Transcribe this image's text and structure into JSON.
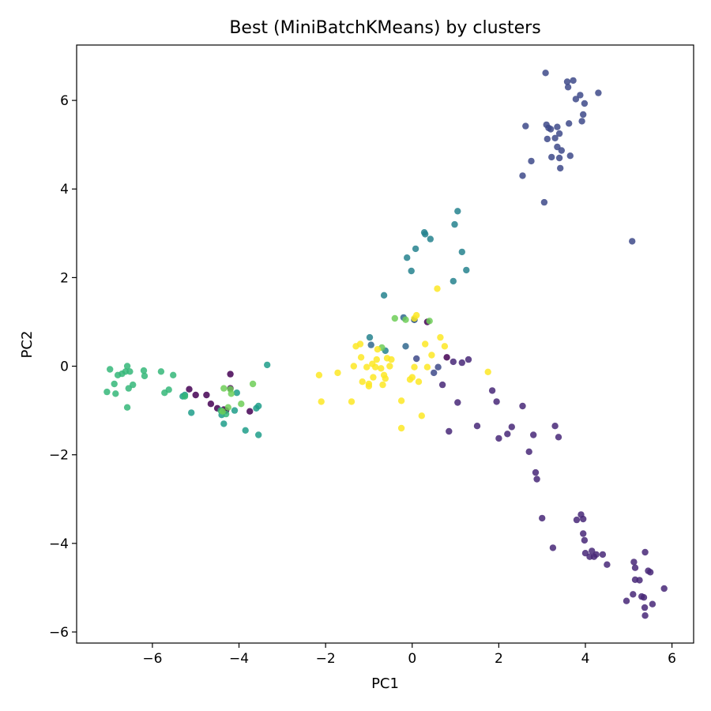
{
  "chart_data": {
    "type": "scatter",
    "title": "Best (MiniBatchKMeans) by clusters",
    "xlabel": "PC1",
    "ylabel": "PC2",
    "xlim": [
      -7.75,
      6.5
    ],
    "ylim": [
      -6.25,
      7.25
    ],
    "xticks": [
      -6,
      -4,
      -2,
      0,
      2,
      4,
      6
    ],
    "yticks": [
      -6,
      -4,
      -2,
      0,
      2,
      4,
      6
    ],
    "xtick_labels": [
      "−6",
      "−4",
      "−2",
      "0",
      "2",
      "4",
      "6"
    ],
    "ytick_labels": [
      "−6",
      "−4",
      "−2",
      "0",
      "2",
      "4",
      "6"
    ],
    "grid": false,
    "legend": "none",
    "marker_alpha": 0.85,
    "series": [
      {
        "color": "#440154",
        "points": [
          [
            -5.15,
            -0.52
          ],
          [
            -5.0,
            -0.65
          ],
          [
            -4.75,
            -0.65
          ],
          [
            -4.65,
            -0.85
          ],
          [
            -4.5,
            -0.95
          ],
          [
            -4.3,
            -1.0
          ],
          [
            -4.2,
            -0.5
          ],
          [
            -4.2,
            -0.18
          ],
          [
            -4.35,
            -0.98
          ],
          [
            -3.75,
            -1.02
          ],
          [
            0.8,
            0.2
          ],
          [
            0.35,
            1.0
          ]
        ]
      },
      {
        "color": "#482878",
        "points": [
          [
            0.05,
            1.05
          ],
          [
            0.7,
            -0.42
          ],
          [
            0.95,
            0.1
          ],
          [
            1.15,
            0.08
          ],
          [
            1.3,
            0.15
          ],
          [
            0.85,
            -1.47
          ],
          [
            1.05,
            -0.82
          ],
          [
            1.5,
            -1.35
          ],
          [
            1.85,
            -0.55
          ],
          [
            1.95,
            -0.8
          ],
          [
            2.0,
            -1.63
          ],
          [
            2.2,
            -1.53
          ],
          [
            2.3,
            -1.37
          ],
          [
            2.55,
            -0.9
          ],
          [
            2.7,
            -1.93
          ],
          [
            2.8,
            -1.55
          ],
          [
            2.85,
            -2.4
          ],
          [
            2.88,
            -2.55
          ],
          [
            3.0,
            -3.43
          ],
          [
            3.25,
            -4.1
          ],
          [
            3.3,
            -1.35
          ],
          [
            3.38,
            -1.6
          ],
          [
            3.8,
            -3.47
          ],
          [
            3.9,
            -3.35
          ],
          [
            3.95,
            -3.45
          ],
          [
            3.95,
            -3.78
          ],
          [
            3.98,
            -3.93
          ],
          [
            4.0,
            -4.22
          ],
          [
            4.1,
            -4.3
          ],
          [
            4.15,
            -4.17
          ],
          [
            4.2,
            -4.3
          ],
          [
            4.25,
            -4.25
          ],
          [
            4.4,
            -4.25
          ],
          [
            4.5,
            -4.48
          ],
          [
            4.95,
            -5.3
          ],
          [
            5.1,
            -5.15
          ],
          [
            5.12,
            -4.42
          ],
          [
            5.15,
            -4.82
          ],
          [
            5.15,
            -4.55
          ],
          [
            5.25,
            -4.83
          ],
          [
            5.3,
            -5.2
          ],
          [
            5.35,
            -5.22
          ],
          [
            5.37,
            -5.45
          ],
          [
            5.38,
            -5.63
          ],
          [
            5.38,
            -4.2
          ],
          [
            5.45,
            -4.62
          ],
          [
            5.5,
            -4.65
          ],
          [
            5.55,
            -5.37
          ],
          [
            5.82,
            -5.02
          ]
        ]
      },
      {
        "color": "#3e4a89",
        "points": [
          [
            0.1,
            0.17
          ],
          [
            0.5,
            -0.15
          ],
          [
            0.6,
            -0.02
          ],
          [
            2.55,
            4.3
          ],
          [
            2.62,
            5.42
          ],
          [
            2.75,
            4.63
          ],
          [
            3.05,
            3.7
          ],
          [
            3.08,
            6.62
          ],
          [
            3.1,
            5.45
          ],
          [
            3.12,
            5.13
          ],
          [
            3.15,
            5.38
          ],
          [
            3.2,
            5.35
          ],
          [
            3.22,
            4.72
          ],
          [
            3.3,
            5.15
          ],
          [
            3.35,
            4.95
          ],
          [
            3.35,
            5.4
          ],
          [
            3.4,
            4.7
          ],
          [
            3.4,
            5.25
          ],
          [
            3.42,
            4.47
          ],
          [
            3.45,
            4.87
          ],
          [
            3.58,
            6.42
          ],
          [
            3.6,
            6.3
          ],
          [
            3.62,
            5.48
          ],
          [
            3.65,
            4.75
          ],
          [
            3.72,
            6.45
          ],
          [
            3.78,
            6.03
          ],
          [
            3.88,
            6.12
          ],
          [
            3.92,
            5.53
          ],
          [
            3.95,
            5.68
          ],
          [
            3.98,
            5.93
          ],
          [
            4.3,
            6.17
          ],
          [
            5.08,
            2.82
          ]
        ]
      },
      {
        "color": "#31688e",
        "points": [
          [
            -0.95,
            0.48
          ],
          [
            -0.2,
            1.1
          ],
          [
            -0.15,
            0.45
          ],
          [
            0.05,
            1.05
          ]
        ]
      },
      {
        "color": "#26828e",
        "points": [
          [
            -0.98,
            0.65
          ],
          [
            -0.65,
            1.6
          ],
          [
            -0.62,
            0.35
          ],
          [
            -0.12,
            2.45
          ],
          [
            -0.02,
            2.15
          ],
          [
            0.08,
            2.65
          ],
          [
            0.28,
            3.02
          ],
          [
            0.3,
            2.98
          ],
          [
            0.42,
            2.87
          ],
          [
            0.95,
            1.92
          ],
          [
            0.98,
            3.2
          ],
          [
            1.05,
            3.5
          ],
          [
            1.15,
            2.58
          ],
          [
            1.25,
            2.17
          ]
        ]
      },
      {
        "color": "#1f9e89",
        "points": [
          [
            -4.4,
            -1.1
          ],
          [
            -4.35,
            -1.3
          ],
          [
            -4.1,
            -1.0
          ],
          [
            -4.05,
            -0.6
          ],
          [
            -3.85,
            -1.45
          ],
          [
            -3.6,
            -0.95
          ],
          [
            -3.55,
            -0.9
          ],
          [
            -3.55,
            -1.55
          ],
          [
            -3.35,
            0.03
          ],
          [
            -5.1,
            -1.05
          ],
          [
            -5.25,
            -0.65
          ],
          [
            -5.3,
            -0.68
          ]
        ]
      },
      {
        "color": "#35b779",
        "points": [
          [
            -7.05,
            -0.58
          ],
          [
            -6.98,
            -0.07
          ],
          [
            -6.88,
            -0.4
          ],
          [
            -6.85,
            -0.62
          ],
          [
            -6.8,
            -0.2
          ],
          [
            -6.7,
            -0.17
          ],
          [
            -6.62,
            -0.12
          ],
          [
            -6.58,
            0.0
          ],
          [
            -6.58,
            -0.93
          ],
          [
            -6.55,
            -0.5
          ],
          [
            -6.52,
            -0.12
          ],
          [
            -6.45,
            -0.42
          ],
          [
            -6.2,
            -0.1
          ],
          [
            -6.18,
            -0.22
          ],
          [
            -5.8,
            -0.12
          ],
          [
            -5.72,
            -0.6
          ],
          [
            -5.62,
            -0.53
          ],
          [
            -5.52,
            -0.2
          ],
          [
            -5.25,
            -0.68
          ],
          [
            -4.42,
            -1.0
          ],
          [
            -4.3,
            -1.08
          ]
        ]
      },
      {
        "color": "#6ece58",
        "points": [
          [
            -4.35,
            -0.5
          ],
          [
            -4.25,
            -0.93
          ],
          [
            -4.2,
            -0.52
          ],
          [
            -4.18,
            -0.62
          ],
          [
            -3.95,
            -0.85
          ],
          [
            -3.68,
            -0.4
          ],
          [
            -4.38,
            -1.02
          ],
          [
            -0.7,
            0.42
          ],
          [
            -0.4,
            1.08
          ],
          [
            -0.15,
            1.05
          ],
          [
            0.4,
            1.02
          ]
        ]
      },
      {
        "color": "#fde725",
        "points": [
          [
            -2.15,
            -0.2
          ],
          [
            -2.1,
            -0.8
          ],
          [
            -1.72,
            -0.15
          ],
          [
            -1.4,
            -0.8
          ],
          [
            -1.35,
            0.0
          ],
          [
            -1.3,
            0.45
          ],
          [
            -1.2,
            0.5
          ],
          [
            -1.18,
            0.2
          ],
          [
            -1.15,
            -0.35
          ],
          [
            -1.05,
            -0.02
          ],
          [
            -1.0,
            -0.45
          ],
          [
            -1.0,
            -0.4
          ],
          [
            -0.92,
            0.05
          ],
          [
            -0.9,
            -0.25
          ],
          [
            -0.85,
            -0.02
          ],
          [
            -0.82,
            0.15
          ],
          [
            -0.8,
            0.38
          ],
          [
            -0.72,
            -0.05
          ],
          [
            -0.68,
            -0.42
          ],
          [
            -0.65,
            -0.2
          ],
          [
            -0.62,
            -0.28
          ],
          [
            -0.58,
            0.18
          ],
          [
            -0.52,
            0.0
          ],
          [
            -0.48,
            0.15
          ],
          [
            -0.25,
            -0.78
          ],
          [
            -0.25,
            -1.4
          ],
          [
            -0.05,
            -0.3
          ],
          [
            0.0,
            -0.25
          ],
          [
            0.05,
            -0.02
          ],
          [
            0.05,
            1.08
          ],
          [
            0.1,
            1.15
          ],
          [
            0.15,
            -0.35
          ],
          [
            0.22,
            -1.12
          ],
          [
            0.3,
            0.5
          ],
          [
            0.35,
            -0.02
          ],
          [
            0.45,
            0.25
          ],
          [
            0.58,
            1.75
          ],
          [
            0.65,
            0.65
          ],
          [
            0.75,
            0.45
          ],
          [
            1.75,
            -0.13
          ]
        ]
      }
    ]
  }
}
